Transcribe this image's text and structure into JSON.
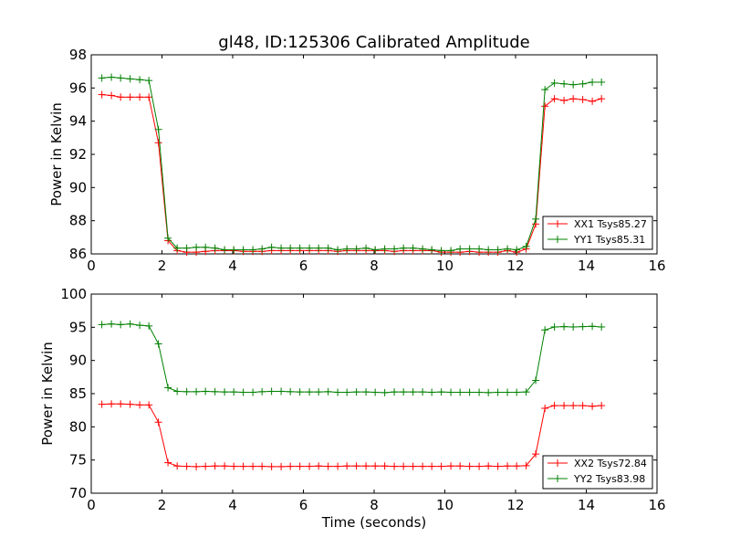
{
  "chart_data": [
    {
      "type": "line",
      "title": "gl48, ID:125306 Calibrated Amplitude",
      "xlabel": "",
      "ylabel": "Power in Kelvin",
      "xlim": [
        0,
        16
      ],
      "ylim": [
        86,
        98
      ],
      "xticks": [
        "0",
        "2",
        "4",
        "6",
        "8",
        "10",
        "12",
        "14",
        "16"
      ],
      "yticks": [
        "86",
        "88",
        "90",
        "92",
        "94",
        "96",
        "98"
      ],
      "legend_position": "lower-right",
      "x": [
        0.3,
        0.57,
        0.83,
        1.1,
        1.37,
        1.63,
        1.9,
        2.17,
        2.43,
        2.7,
        2.97,
        3.23,
        3.5,
        3.77,
        4.03,
        4.3,
        4.57,
        4.83,
        5.1,
        5.37,
        5.63,
        5.9,
        6.17,
        6.43,
        6.7,
        6.97,
        7.23,
        7.5,
        7.77,
        8.03,
        8.3,
        8.57,
        8.83,
        9.1,
        9.37,
        9.63,
        9.9,
        10.17,
        10.43,
        10.7,
        10.97,
        11.23,
        11.5,
        11.77,
        12.03,
        12.3,
        12.57,
        12.83,
        13.1,
        13.37,
        13.63,
        13.9,
        14.17,
        14.43
      ],
      "series": [
        {
          "name": "XX1 Tsys85.27",
          "color": "#ff0000",
          "values": [
            95.6,
            95.55,
            95.45,
            95.45,
            95.45,
            95.45,
            92.7,
            86.8,
            86.2,
            86.1,
            86.1,
            86.15,
            86.2,
            86.2,
            86.2,
            86.15,
            86.15,
            86.15,
            86.2,
            86.2,
            86.2,
            86.2,
            86.2,
            86.2,
            86.2,
            86.15,
            86.2,
            86.2,
            86.2,
            86.2,
            86.2,
            86.15,
            86.2,
            86.2,
            86.2,
            86.2,
            86.1,
            86.1,
            86.1,
            86.15,
            86.1,
            86.1,
            86.1,
            86.2,
            86.1,
            86.3,
            87.8,
            94.9,
            95.35,
            95.25,
            95.35,
            95.3,
            95.2,
            95.35
          ]
        },
        {
          "name": "YY1 Tsys85.31",
          "color": "#008000",
          "values": [
            96.6,
            96.65,
            96.6,
            96.55,
            96.5,
            96.45,
            93.5,
            86.95,
            86.35,
            86.35,
            86.4,
            86.4,
            86.35,
            86.25,
            86.25,
            86.25,
            86.25,
            86.3,
            86.4,
            86.35,
            86.35,
            86.35,
            86.35,
            86.35,
            86.35,
            86.25,
            86.3,
            86.3,
            86.35,
            86.25,
            86.3,
            86.3,
            86.35,
            86.35,
            86.3,
            86.25,
            86.2,
            86.2,
            86.3,
            86.3,
            86.3,
            86.25,
            86.25,
            86.3,
            86.25,
            86.45,
            88.1,
            95.9,
            96.3,
            96.25,
            96.2,
            96.25,
            96.35,
            96.35
          ]
        }
      ]
    },
    {
      "type": "line",
      "title": "",
      "xlabel": "Time (seconds)",
      "ylabel": "Power in Kelvin",
      "xlim": [
        0,
        16
      ],
      "ylim": [
        70,
        100
      ],
      "xticks": [
        "0",
        "2",
        "4",
        "6",
        "8",
        "10",
        "12",
        "14",
        "16"
      ],
      "yticks": [
        "70",
        "75",
        "80",
        "85",
        "90",
        "95",
        "100"
      ],
      "legend_position": "lower-right",
      "x": [
        0.3,
        0.57,
        0.83,
        1.1,
        1.37,
        1.63,
        1.9,
        2.17,
        2.43,
        2.7,
        2.97,
        3.23,
        3.5,
        3.77,
        4.03,
        4.3,
        4.57,
        4.83,
        5.1,
        5.37,
        5.63,
        5.9,
        6.17,
        6.43,
        6.7,
        6.97,
        7.23,
        7.5,
        7.77,
        8.03,
        8.3,
        8.57,
        8.83,
        9.1,
        9.37,
        9.63,
        9.9,
        10.17,
        10.43,
        10.7,
        10.97,
        11.23,
        11.5,
        11.77,
        12.03,
        12.3,
        12.57,
        12.83,
        13.1,
        13.37,
        13.63,
        13.9,
        14.17,
        14.43
      ],
      "series": [
        {
          "name": "XX2 Tsys72.84",
          "color": "#ff0000",
          "values": [
            83.4,
            83.45,
            83.45,
            83.4,
            83.3,
            83.3,
            80.7,
            74.6,
            74.1,
            74.05,
            74.0,
            74.05,
            74.1,
            74.1,
            74.05,
            74.05,
            74.05,
            74.05,
            74.0,
            74.0,
            74.05,
            74.05,
            74.05,
            74.1,
            74.05,
            74.05,
            74.1,
            74.1,
            74.1,
            74.1,
            74.1,
            74.05,
            74.05,
            74.05,
            74.05,
            74.05,
            74.05,
            74.1,
            74.1,
            74.05,
            74.05,
            74.1,
            74.05,
            74.1,
            74.1,
            74.15,
            75.9,
            82.8,
            83.2,
            83.2,
            83.2,
            83.2,
            83.1,
            83.2
          ]
        },
        {
          "name": "YY2 Tsys83.98",
          "color": "#008000",
          "values": [
            95.4,
            95.5,
            95.4,
            95.5,
            95.3,
            95.2,
            92.5,
            85.9,
            85.35,
            85.3,
            85.3,
            85.35,
            85.3,
            85.25,
            85.25,
            85.2,
            85.2,
            85.3,
            85.35,
            85.35,
            85.3,
            85.25,
            85.25,
            85.25,
            85.3,
            85.2,
            85.2,
            85.25,
            85.25,
            85.2,
            85.15,
            85.25,
            85.25,
            85.25,
            85.25,
            85.2,
            85.25,
            85.2,
            85.2,
            85.2,
            85.2,
            85.15,
            85.2,
            85.2,
            85.2,
            85.25,
            87.0,
            94.6,
            95.05,
            95.1,
            95.05,
            95.1,
            95.15,
            95.05
          ]
        }
      ]
    }
  ]
}
